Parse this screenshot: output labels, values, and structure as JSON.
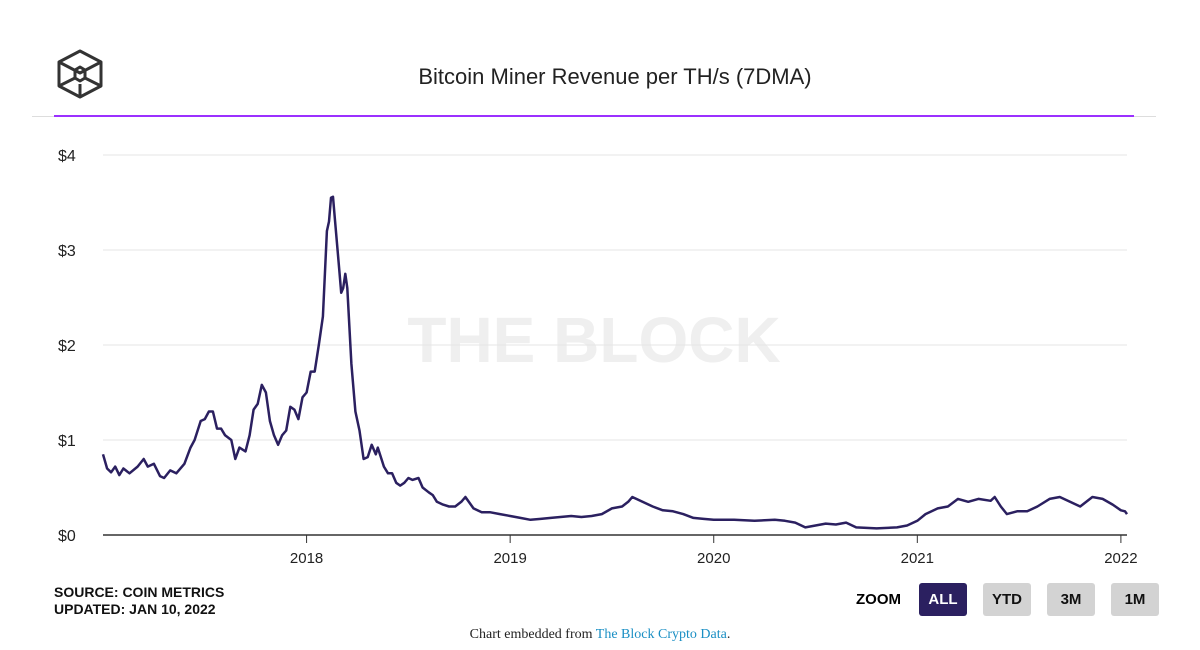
{
  "header": {
    "title": "Bitcoin Miner Revenue per TH/s (7DMA)",
    "logo": "the-block-cube-logo"
  },
  "watermark": "THE BLOCK",
  "footer": {
    "source": "SOURCE: COIN METRICS",
    "updated": "UPDATED: JAN 10, 2022",
    "embed_prefix": "Chart embedded from ",
    "embed_link": "The Block Crypto Data",
    "embed_suffix": "."
  },
  "zoom": {
    "label": "ZOOM",
    "buttons": [
      "ALL",
      "YTD",
      "3M",
      "1M"
    ],
    "active": "ALL"
  },
  "colors": {
    "line": "#2b2060",
    "accent": "#9b30ff",
    "active_button": "#2b2060",
    "link": "#1a8fc4"
  },
  "chart_data": {
    "type": "line",
    "title": "Bitcoin Miner Revenue per TH/s (7DMA)",
    "xlabel": "",
    "ylabel": "",
    "xlim": [
      2017.0,
      2022.03
    ],
    "ylim": [
      0,
      4
    ],
    "x_ticks": [
      {
        "value": 2018,
        "label": "2018"
      },
      {
        "value": 2019,
        "label": "2019"
      },
      {
        "value": 2020,
        "label": "2020"
      },
      {
        "value": 2021,
        "label": "2021"
      },
      {
        "value": 2022,
        "label": "2022"
      }
    ],
    "y_ticks": [
      {
        "value": 0,
        "label": "$0"
      },
      {
        "value": 1,
        "label": "$1"
      },
      {
        "value": 2,
        "label": "$2"
      },
      {
        "value": 3,
        "label": "$3"
      },
      {
        "value": 4,
        "label": "$4"
      }
    ],
    "grid": true,
    "series": [
      {
        "name": "Miner Revenue per TH/s",
        "points": [
          [
            2017.0,
            0.85
          ],
          [
            2017.02,
            0.7
          ],
          [
            2017.04,
            0.66
          ],
          [
            2017.06,
            0.72
          ],
          [
            2017.08,
            0.63
          ],
          [
            2017.1,
            0.7
          ],
          [
            2017.13,
            0.65
          ],
          [
            2017.17,
            0.72
          ],
          [
            2017.2,
            0.8
          ],
          [
            2017.22,
            0.72
          ],
          [
            2017.25,
            0.75
          ],
          [
            2017.28,
            0.62
          ],
          [
            2017.3,
            0.6
          ],
          [
            2017.33,
            0.68
          ],
          [
            2017.36,
            0.65
          ],
          [
            2017.4,
            0.75
          ],
          [
            2017.43,
            0.92
          ],
          [
            2017.45,
            1.0
          ],
          [
            2017.48,
            1.2
          ],
          [
            2017.5,
            1.22
          ],
          [
            2017.52,
            1.3
          ],
          [
            2017.54,
            1.3
          ],
          [
            2017.56,
            1.12
          ],
          [
            2017.58,
            1.12
          ],
          [
            2017.6,
            1.05
          ],
          [
            2017.63,
            1.0
          ],
          [
            2017.65,
            0.8
          ],
          [
            2017.67,
            0.92
          ],
          [
            2017.7,
            0.88
          ],
          [
            2017.72,
            1.05
          ],
          [
            2017.74,
            1.32
          ],
          [
            2017.76,
            1.38
          ],
          [
            2017.78,
            1.58
          ],
          [
            2017.8,
            1.5
          ],
          [
            2017.82,
            1.2
          ],
          [
            2017.84,
            1.05
          ],
          [
            2017.86,
            0.95
          ],
          [
            2017.88,
            1.05
          ],
          [
            2017.9,
            1.1
          ],
          [
            2017.92,
            1.35
          ],
          [
            2017.94,
            1.32
          ],
          [
            2017.96,
            1.22
          ],
          [
            2017.98,
            1.45
          ],
          [
            2018.0,
            1.5
          ],
          [
            2018.02,
            1.72
          ],
          [
            2018.04,
            1.72
          ],
          [
            2018.06,
            2.0
          ],
          [
            2018.08,
            2.3
          ],
          [
            2018.1,
            3.2
          ],
          [
            2018.11,
            3.3
          ],
          [
            2018.12,
            3.55
          ],
          [
            2018.13,
            3.56
          ],
          [
            2018.14,
            3.3
          ],
          [
            2018.16,
            2.8
          ],
          [
            2018.17,
            2.55
          ],
          [
            2018.18,
            2.6
          ],
          [
            2018.19,
            2.75
          ],
          [
            2018.2,
            2.6
          ],
          [
            2018.22,
            1.8
          ],
          [
            2018.24,
            1.3
          ],
          [
            2018.26,
            1.1
          ],
          [
            2018.28,
            0.8
          ],
          [
            2018.3,
            0.82
          ],
          [
            2018.32,
            0.95
          ],
          [
            2018.34,
            0.85
          ],
          [
            2018.35,
            0.92
          ],
          [
            2018.38,
            0.72
          ],
          [
            2018.4,
            0.65
          ],
          [
            2018.42,
            0.65
          ],
          [
            2018.44,
            0.55
          ],
          [
            2018.46,
            0.52
          ],
          [
            2018.48,
            0.55
          ],
          [
            2018.5,
            0.6
          ],
          [
            2018.52,
            0.58
          ],
          [
            2018.55,
            0.6
          ],
          [
            2018.57,
            0.5
          ],
          [
            2018.6,
            0.45
          ],
          [
            2018.62,
            0.42
          ],
          [
            2018.64,
            0.35
          ],
          [
            2018.67,
            0.32
          ],
          [
            2018.7,
            0.3
          ],
          [
            2018.73,
            0.3
          ],
          [
            2018.76,
            0.35
          ],
          [
            2018.78,
            0.4
          ],
          [
            2018.82,
            0.28
          ],
          [
            2018.86,
            0.24
          ],
          [
            2018.9,
            0.24
          ],
          [
            2018.95,
            0.22
          ],
          [
            2019.0,
            0.2
          ],
          [
            2019.05,
            0.18
          ],
          [
            2019.1,
            0.16
          ],
          [
            2019.15,
            0.17
          ],
          [
            2019.2,
            0.18
          ],
          [
            2019.3,
            0.2
          ],
          [
            2019.35,
            0.19
          ],
          [
            2019.4,
            0.2
          ],
          [
            2019.45,
            0.22
          ],
          [
            2019.5,
            0.28
          ],
          [
            2019.55,
            0.3
          ],
          [
            2019.58,
            0.35
          ],
          [
            2019.6,
            0.4
          ],
          [
            2019.65,
            0.35
          ],
          [
            2019.7,
            0.3
          ],
          [
            2019.75,
            0.26
          ],
          [
            2019.8,
            0.25
          ],
          [
            2019.85,
            0.22
          ],
          [
            2019.9,
            0.18
          ],
          [
            2019.95,
            0.17
          ],
          [
            2020.0,
            0.16
          ],
          [
            2020.1,
            0.16
          ],
          [
            2020.2,
            0.15
          ],
          [
            2020.3,
            0.16
          ],
          [
            2020.35,
            0.15
          ],
          [
            2020.4,
            0.13
          ],
          [
            2020.45,
            0.08
          ],
          [
            2020.5,
            0.1
          ],
          [
            2020.55,
            0.12
          ],
          [
            2020.6,
            0.11
          ],
          [
            2020.65,
            0.13
          ],
          [
            2020.7,
            0.08
          ],
          [
            2020.8,
            0.07
          ],
          [
            2020.9,
            0.08
          ],
          [
            2020.95,
            0.1
          ],
          [
            2021.0,
            0.15
          ],
          [
            2021.04,
            0.22
          ],
          [
            2021.1,
            0.28
          ],
          [
            2021.15,
            0.3
          ],
          [
            2021.2,
            0.38
          ],
          [
            2021.25,
            0.35
          ],
          [
            2021.3,
            0.38
          ],
          [
            2021.36,
            0.36
          ],
          [
            2021.38,
            0.4
          ],
          [
            2021.41,
            0.3
          ],
          [
            2021.44,
            0.22
          ],
          [
            2021.49,
            0.25
          ],
          [
            2021.54,
            0.25
          ],
          [
            2021.59,
            0.3
          ],
          [
            2021.65,
            0.38
          ],
          [
            2021.7,
            0.4
          ],
          [
            2021.75,
            0.35
          ],
          [
            2021.8,
            0.3
          ],
          [
            2021.86,
            0.4
          ],
          [
            2021.91,
            0.38
          ],
          [
            2021.96,
            0.32
          ],
          [
            2022.0,
            0.26
          ],
          [
            2022.02,
            0.25
          ],
          [
            2022.03,
            0.22
          ]
        ]
      }
    ]
  }
}
